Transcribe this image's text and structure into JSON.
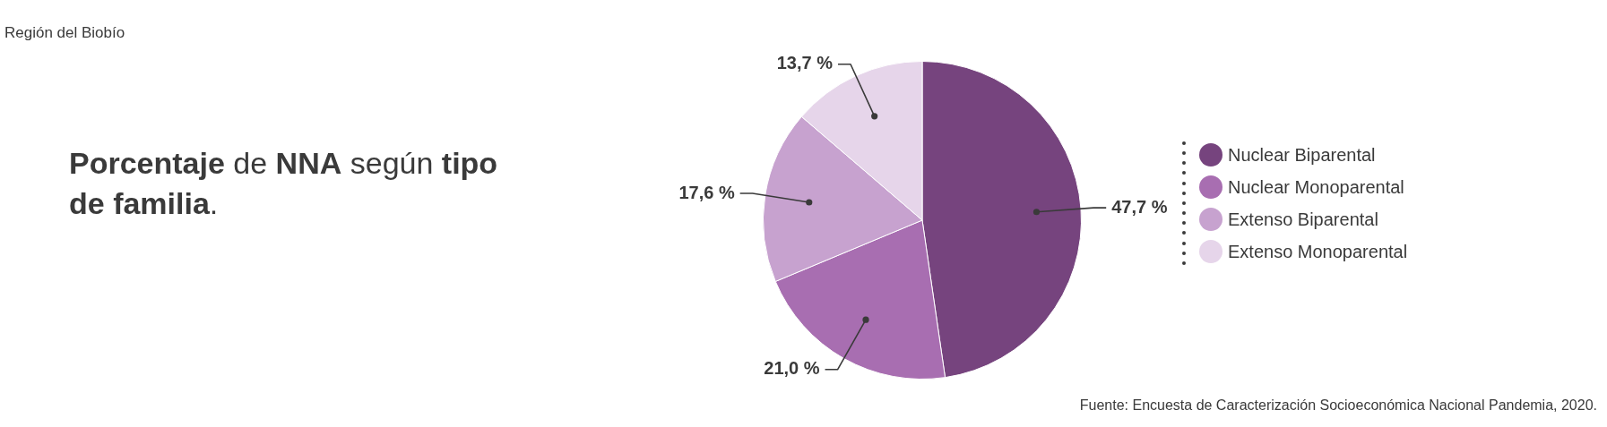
{
  "chart_data": {
    "type": "pie",
    "title": "Porcentaje de NNA según tipo de familia.",
    "subtitle": "Región del Biobío",
    "categories": [
      "Nuclear Biparental",
      "Nuclear Monoparental",
      "Extenso Biparental",
      "Extenso Monoparental"
    ],
    "values": [
      47.7,
      21.0,
      17.6,
      13.7
    ],
    "colors": [
      "#76447e",
      "#a86eb1",
      "#c7a2cf",
      "#e6d5ea"
    ],
    "value_labels": [
      "47,7 %",
      "21,0 %",
      "17,6 %",
      "13,7 %"
    ],
    "legend": "right",
    "annotations": [
      "Fuente: Encuesta de Caracterización Socioeconómica Nacional Pandemia, 2020."
    ]
  }
}
